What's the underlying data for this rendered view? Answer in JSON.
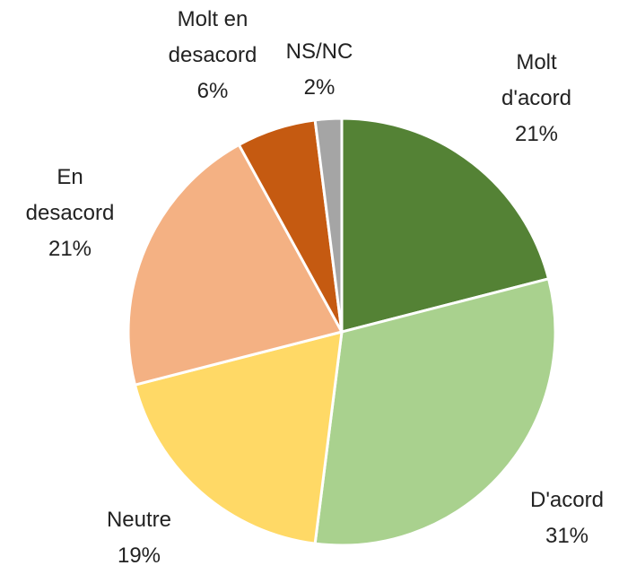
{
  "chart_data": {
    "type": "pie",
    "categories": [
      "Molt d'acord",
      "D'acord",
      "Neutre",
      "En desacord",
      "Molt en desacord",
      "NS/NC"
    ],
    "values": [
      21,
      31,
      19,
      21,
      6,
      2
    ],
    "value_labels": [
      "21%",
      "31%",
      "19%",
      "21%",
      "6%",
      "2%"
    ],
    "colors": [
      "#548235",
      "#a9d18e",
      "#ffd966",
      "#f4b183",
      "#c55a11",
      "#a5a5a5"
    ]
  }
}
